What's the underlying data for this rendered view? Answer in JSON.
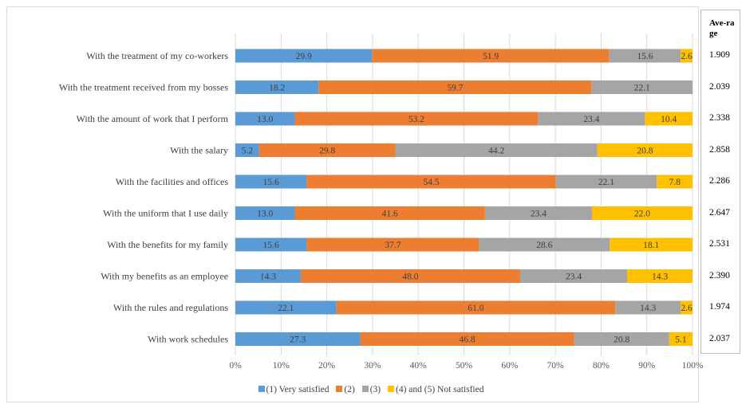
{
  "chart_data": {
    "type": "bar",
    "orientation": "horizontal",
    "stacked": "percent",
    "categories": [
      "With the treatment of my co-workers",
      "With the treatment received from my bosses",
      "With the amount of work that I perform",
      "With the salary",
      "With the facilities and offices",
      "With the uniform that I use daily",
      "With the benefits for my family",
      "With my benefits as an employee",
      "With the rules and regulations",
      "With work schedules"
    ],
    "series": [
      {
        "name": "(1) Very satisfied",
        "color": "#5b9bd5",
        "values": [
          29.9,
          18.2,
          13.0,
          5.2,
          15.6,
          13.0,
          15.6,
          14.3,
          22.1,
          27.3
        ],
        "labels": [
          "29.9",
          "18.2",
          "13.0",
          "5.2",
          "15.6",
          "13.0",
          "15.6",
          "14.3",
          "22.1",
          "27.3"
        ]
      },
      {
        "name": "(2)",
        "color": "#ed7d31",
        "values": [
          51.9,
          59.7,
          53.2,
          29.8,
          54.5,
          41.6,
          37.7,
          48.0,
          61.0,
          46.8
        ],
        "labels": [
          "51.9",
          "59.7",
          "53.2",
          "29.8",
          "54.5",
          "41.6",
          "37.7",
          "48.0",
          "61.0",
          "46.8"
        ]
      },
      {
        "name": "(3)",
        "color": "#a5a5a5",
        "values": [
          15.6,
          22.1,
          23.4,
          44.2,
          22.1,
          23.4,
          28.6,
          23.4,
          14.3,
          20.8
        ],
        "labels": [
          "15.6",
          "22.1",
          "23.4",
          "44.2",
          "22.1",
          "23.4",
          "28.6",
          "23.4",
          "14.3",
          "20.8"
        ]
      },
      {
        "name": "(4) and (5) Not satisfied",
        "color": "#ffc000",
        "values": [
          2.6,
          0,
          10.4,
          20.8,
          7.8,
          22.0,
          18.1,
          14.3,
          2.6,
          5.1
        ],
        "labels": [
          "2.6",
          "",
          "10.4",
          "20.8",
          "7.8",
          "22.0",
          "18.1",
          "14.3",
          "2.6",
          "5.1"
        ]
      }
    ],
    "xlim": [
      0,
      100
    ],
    "x_ticks": [
      "0%",
      "10%",
      "20%",
      "30%",
      "40%",
      "50%",
      "60%",
      "70%",
      "80%",
      "90%",
      "100%"
    ],
    "grid": "vertical",
    "legend": "bottom",
    "average": {
      "header": "Ave-rage",
      "values": [
        "1.909",
        "2.039",
        "2.338",
        "2.858",
        "2.286",
        "2.647",
        "2.531",
        "2.390",
        "1.974",
        "2.037"
      ]
    }
  }
}
